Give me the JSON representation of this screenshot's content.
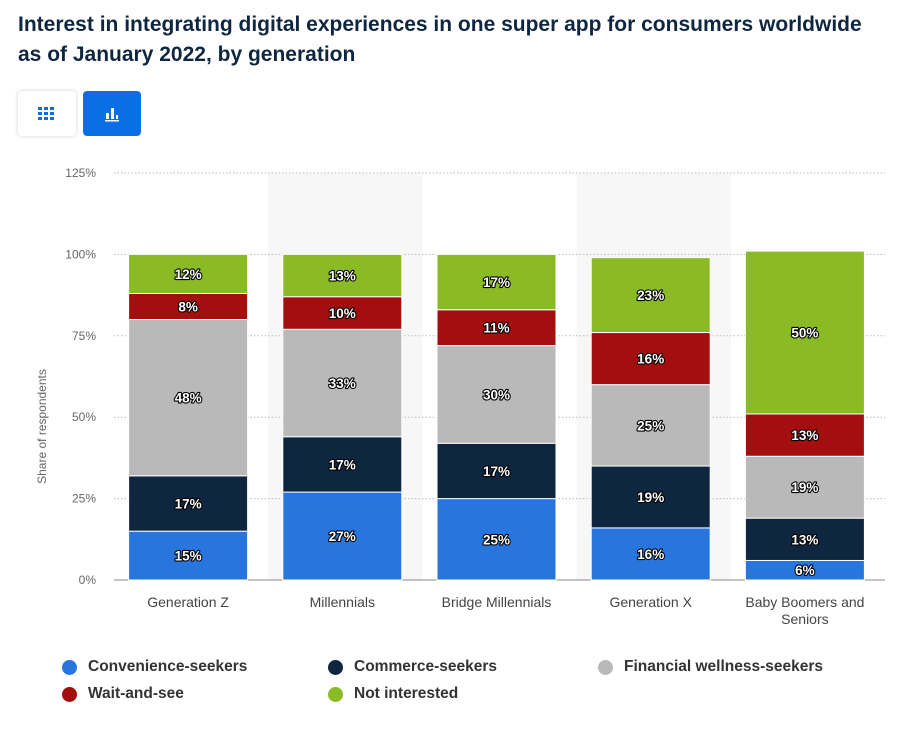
{
  "title": "Interest in integrating digital experiences in one super app for consumers worldwide as of January 2022, by generation",
  "toolbar": {
    "table_icon": "grid-icon",
    "chart_icon": "bar-chart-icon",
    "active": "chart"
  },
  "chart_data": {
    "type": "bar",
    "stacked": true,
    "title": "Interest in integrating digital experiences in one super app for consumers worldwide as of January 2022, by generation",
    "ylabel": "Share of respondents",
    "xlabel": "",
    "ylim": [
      0,
      125
    ],
    "yticks": [
      "0%",
      "25%",
      "50%",
      "75%",
      "100%",
      "125%"
    ],
    "ytick_values": [
      0,
      25,
      50,
      75,
      100,
      125
    ],
    "grid": true,
    "legend_position": "bottom",
    "categories": [
      "Generation Z",
      "Millennials",
      "Bridge Millennials",
      "Generation X",
      "Baby Boomers and Seniors"
    ],
    "series": [
      {
        "name": "Convenience-seekers",
        "color": "#2876dd",
        "values": [
          15,
          27,
          25,
          16,
          6
        ]
      },
      {
        "name": "Commerce-seekers",
        "color": "#0f2640",
        "values": [
          17,
          17,
          17,
          19,
          13
        ]
      },
      {
        "name": "Financial wellness-seekers",
        "color": "#b9b9b9",
        "values": [
          48,
          33,
          30,
          25,
          19
        ]
      },
      {
        "name": "Wait-and-see",
        "color": "#a30e0e",
        "values": [
          8,
          10,
          11,
          16,
          13
        ]
      },
      {
        "name": "Not interested",
        "color": "#8aba24",
        "values": [
          12,
          13,
          17,
          23,
          50
        ]
      }
    ]
  }
}
